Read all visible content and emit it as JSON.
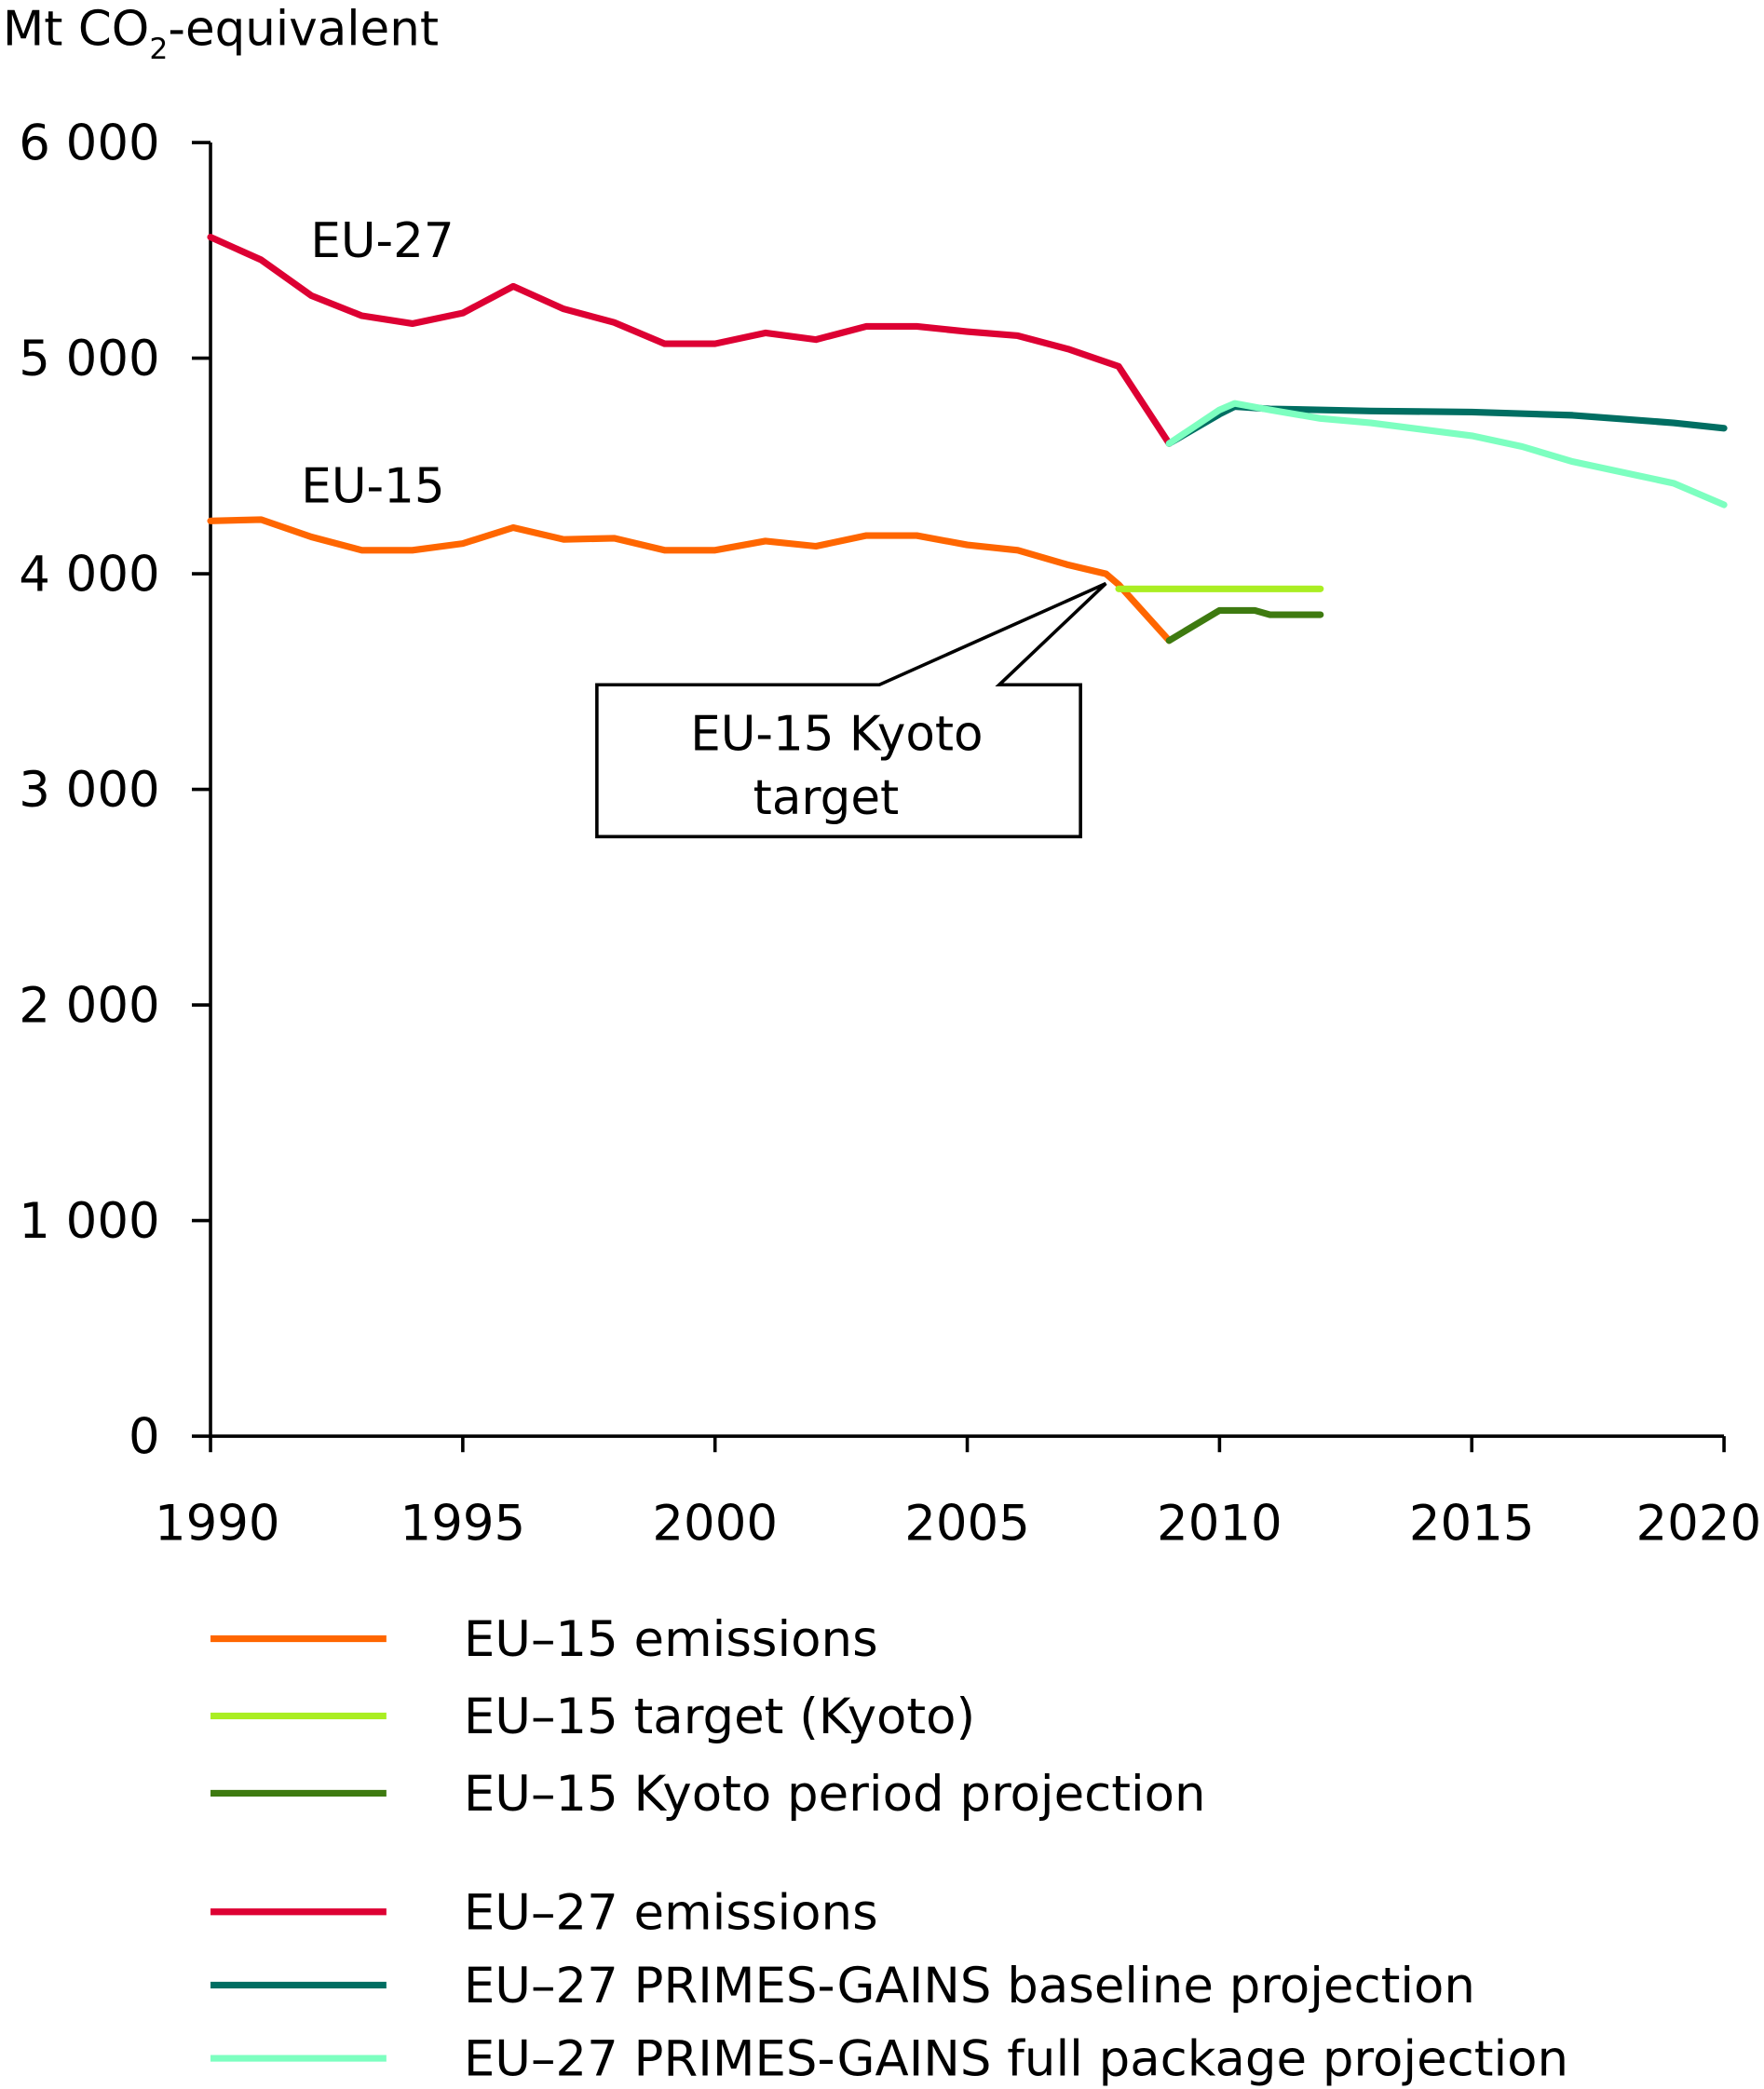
{
  "chart_data": {
    "type": "line",
    "ylabel_main": "Mt CO",
    "ylabel_sub": "2",
    "ylabel_rest": "-equivalent",
    "xlim": [
      1990,
      2020
    ],
    "ylim": [
      0,
      6000
    ],
    "x_ticks": [
      1990,
      1995,
      2000,
      2005,
      2010,
      2015,
      2020
    ],
    "y_ticks": [
      0,
      1000,
      2000,
      3000,
      4000,
      5000,
      6000
    ],
    "y_tick_labels": [
      "0",
      "1 000",
      "2 000",
      "3 000",
      "4 000",
      "5 000",
      "6 000"
    ],
    "x_tick_labels": [
      "1990",
      "1995",
      "2000",
      "2005",
      "2010",
      "2015",
      "2020"
    ],
    "grid": false,
    "legend_placement": "bottom",
    "annotations": {
      "eu27": "EU-27",
      "eu15": "EU-15",
      "callout_line1": "EU-15 Kyoto",
      "callout_line2": "target"
    },
    "series": [
      {
        "name": "EU–15 emissions",
        "color": "#ff6600",
        "x": [
          1990,
          1991,
          1992,
          1993,
          1994,
          1995,
          1996,
          1997,
          1998,
          1999,
          2000,
          2001,
          2002,
          2003,
          2004,
          2005,
          2006,
          2007,
          2007.75,
          2008,
          2009
        ],
        "y": [
          4245,
          4251,
          4171,
          4109,
          4109,
          4140,
          4214,
          4159,
          4165,
          4109,
          4109,
          4152,
          4128,
          4177,
          4177,
          4134,
          4109,
          4041,
          4000,
          3950,
          3690
        ]
      },
      {
        "name": "EU–15 target (Kyoto)",
        "color": "#aaee22",
        "x": [
          2008,
          2012
        ],
        "y": [
          3930,
          3930
        ]
      },
      {
        "name": "EU–15 Kyoto period projection",
        "color": "#3e7a10",
        "x": [
          2009,
          2010,
          2010.7,
          2011,
          2012
        ],
        "y": [
          3690,
          3830,
          3830,
          3810,
          3810
        ]
      },
      {
        "name": "EU–27 emissions",
        "color": "#dd0033",
        "x": [
          1990,
          1991,
          1992,
          1993,
          1994,
          1995,
          1996,
          1997,
          1998,
          1999,
          2000,
          2001,
          2002,
          2003,
          2004,
          2005,
          2006,
          2007,
          2008,
          2009
        ],
        "y": [
          5561,
          5456,
          5290,
          5197,
          5160,
          5209,
          5333,
          5228,
          5166,
          5067,
          5067,
          5117,
          5086,
          5147,
          5147,
          5123,
          5104,
          5042,
          4962,
          4604
        ]
      },
      {
        "name": "EU–27 PRIMES-GAINS baseline projection",
        "color": "#006e62",
        "x": [
          2009,
          2010,
          2010.3,
          2011,
          2013,
          2015,
          2017,
          2019,
          2020
        ],
        "y": [
          4604,
          4740,
          4775,
          4765,
          4755,
          4750,
          4735,
          4700,
          4675
        ]
      },
      {
        "name": "EU–27 PRIMES-GAINS full package projection",
        "color": "#7dffc0",
        "x": [
          2009,
          2010,
          2010.3,
          2011,
          2012,
          2013,
          2015,
          2016,
          2017,
          2019,
          2020
        ],
        "y": [
          4604,
          4760,
          4790,
          4760,
          4720,
          4700,
          4640,
          4590,
          4520,
          4420,
          4320
        ]
      }
    ],
    "legend_groups": [
      [
        0,
        1,
        2
      ],
      [
        3,
        4,
        5
      ]
    ]
  }
}
